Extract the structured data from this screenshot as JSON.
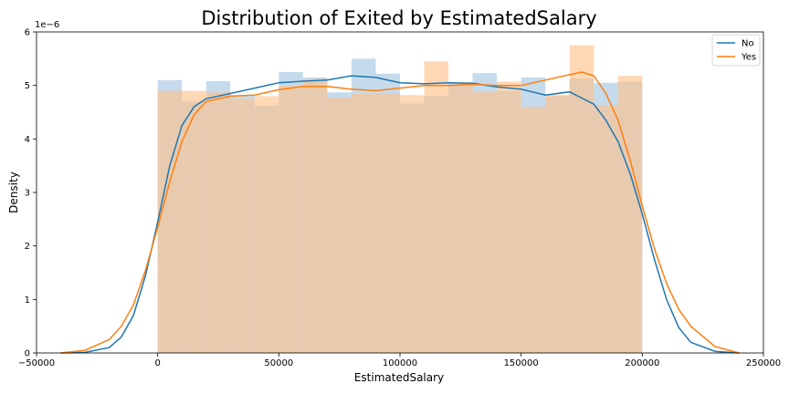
{
  "chart_data": {
    "type": "histogram",
    "title": "Distribution of Exited by EstimatedSalary",
    "xlabel": "EstimatedSalary",
    "ylabel": "Density",
    "y_offset_text": "1e−6",
    "xlim": [
      -50000,
      250000
    ],
    "ylim": [
      0,
      6
    ],
    "x_ticks": [
      -50000,
      0,
      50000,
      100000,
      150000,
      200000,
      250000
    ],
    "y_ticks": [
      0,
      1,
      2,
      3,
      4,
      5,
      6
    ],
    "grid": false,
    "legend_position": "top-right",
    "bin_edges": [
      0,
      10000,
      20000,
      30000,
      40000,
      50000,
      60000,
      70000,
      80000,
      90000,
      100000,
      110000,
      120000,
      130000,
      140000,
      150000,
      160000,
      170000,
      180000,
      190000,
      200000
    ],
    "series": [
      {
        "name": "No",
        "color": "#1f77b4",
        "hist_color": "#9ec3df",
        "hist_values": [
          5.1,
          4.7,
          5.08,
          4.82,
          4.62,
          5.25,
          5.15,
          4.87,
          5.5,
          5.22,
          4.66,
          4.8,
          5.05,
          5.23,
          4.9,
          5.15,
          4.8,
          5.13,
          5.05,
          5.07
        ],
        "kde_x": [
          -40000,
          -30000,
          -20000,
          -15000,
          -10000,
          -5000,
          0,
          5000,
          10000,
          15000,
          20000,
          30000,
          40000,
          50000,
          60000,
          70000,
          80000,
          90000,
          100000,
          110000,
          120000,
          130000,
          140000,
          150000,
          160000,
          170000,
          180000,
          185000,
          190000,
          195000,
          200000,
          205000,
          210000,
          215000,
          220000,
          230000,
          240000
        ],
        "kde_y": [
          0,
          0.01,
          0.1,
          0.3,
          0.7,
          1.45,
          2.45,
          3.5,
          4.25,
          4.6,
          4.75,
          4.85,
          4.95,
          5.05,
          5.08,
          5.1,
          5.18,
          5.15,
          5.05,
          5.03,
          5.05,
          5.04,
          4.97,
          4.93,
          4.82,
          4.88,
          4.65,
          4.35,
          3.95,
          3.35,
          2.6,
          1.75,
          1.0,
          0.48,
          0.2,
          0.03,
          0
        ]
      },
      {
        "name": "Yes",
        "color": "#ff7f0e",
        "hist_color": "#ffbe86",
        "hist_values": [
          4.9,
          4.9,
          4.87,
          4.75,
          4.8,
          5.0,
          5.12,
          4.77,
          4.85,
          4.85,
          4.82,
          5.45,
          5.0,
          4.88,
          5.07,
          4.6,
          4.83,
          5.75,
          4.63,
          5.18
        ],
        "kde_x": [
          -40000,
          -30000,
          -20000,
          -15000,
          -10000,
          -5000,
          0,
          5000,
          10000,
          15000,
          20000,
          30000,
          40000,
          50000,
          60000,
          70000,
          80000,
          90000,
          100000,
          110000,
          120000,
          130000,
          140000,
          150000,
          160000,
          170000,
          175000,
          180000,
          185000,
          190000,
          195000,
          200000,
          205000,
          210000,
          215000,
          220000,
          230000,
          240000
        ],
        "kde_y": [
          0,
          0.05,
          0.25,
          0.5,
          0.9,
          1.55,
          2.35,
          3.2,
          3.95,
          4.45,
          4.7,
          4.8,
          4.82,
          4.92,
          4.98,
          4.98,
          4.93,
          4.9,
          4.95,
          5.0,
          5.0,
          5.02,
          5.0,
          5.0,
          5.1,
          5.2,
          5.25,
          5.18,
          4.85,
          4.35,
          3.6,
          2.75,
          1.95,
          1.3,
          0.82,
          0.5,
          0.12,
          0
        ]
      }
    ]
  }
}
